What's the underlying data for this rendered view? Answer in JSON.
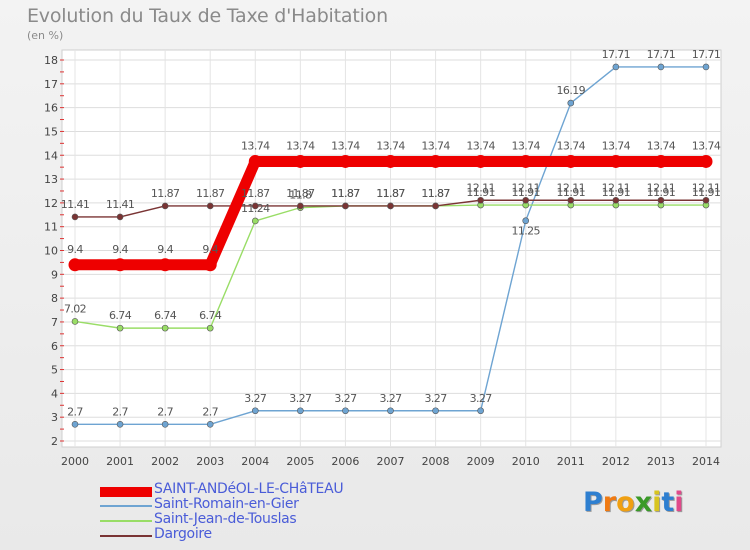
{
  "chart_data": {
    "type": "line",
    "title": "Evolution du Taux de Taxe d'Habitation",
    "subtitle": "(en %)",
    "x": [
      "2000",
      "2001",
      "2002",
      "2003",
      "2004",
      "2005",
      "2006",
      "2007",
      "2008",
      "2009",
      "2010",
      "2011",
      "2012",
      "2013",
      "2014"
    ],
    "ylim": [
      2,
      18
    ],
    "yticks": [
      "2",
      "3",
      "4",
      "5",
      "6",
      "7",
      "8",
      "9",
      "10",
      "11",
      "12",
      "13",
      "14",
      "15",
      "16",
      "17",
      "18"
    ],
    "grid": true,
    "legend_position": "bottom-left",
    "series": [
      {
        "name": "SAINT-ANDéOL-LE-CHâTEAU",
        "color": "#ee0000",
        "values": [
          9.4,
          9.4,
          9.4,
          9.4,
          13.74,
          13.74,
          13.74,
          13.74,
          13.74,
          13.74,
          13.74,
          13.74,
          13.74,
          13.74,
          13.74
        ],
        "labels": [
          "9.4",
          "9.4",
          "9.4",
          "9.4",
          "13.74",
          "13.74",
          "13.74",
          "13.74",
          "13.74",
          "13.74",
          "13.74",
          "13.74",
          "13.74",
          "13.74",
          "13.74"
        ]
      },
      {
        "name": "Saint-Romain-en-Gier",
        "color": "#6ea4d2",
        "values": [
          2.7,
          2.7,
          2.7,
          2.7,
          3.27,
          3.27,
          3.27,
          3.27,
          3.27,
          3.27,
          11.25,
          16.19,
          17.71,
          17.71,
          17.71
        ],
        "labels": [
          "2.7",
          "2.7",
          "2.7",
          "2.7",
          "3.27",
          "3.27",
          "3.27",
          "3.27",
          "3.27",
          "3.27",
          "11.25",
          "16.19",
          "17.71",
          "17.71",
          "17.71"
        ]
      },
      {
        "name": "Saint-Jean-de-Touslas",
        "color": "#99dd66",
        "values": [
          7.02,
          6.74,
          6.74,
          6.74,
          11.24,
          11.8,
          11.87,
          11.87,
          11.87,
          11.91,
          11.91,
          11.91,
          11.91,
          11.91,
          11.91
        ],
        "labels": [
          "7.02",
          "6.74",
          "6.74",
          "6.74",
          "11.24",
          "11.8",
          "11.87",
          "11.87",
          "11.87",
          "11.91",
          "11.91",
          "11.91",
          "11.91",
          "11.91",
          "11.91"
        ]
      },
      {
        "name": "Dargoire",
        "color": "#7a3434",
        "values": [
          11.41,
          11.41,
          11.87,
          11.87,
          11.87,
          11.87,
          11.87,
          11.87,
          11.87,
          12.11,
          12.11,
          12.11,
          12.11,
          12.11,
          12.11
        ],
        "labels": [
          "11.41",
          "11.41",
          "11.87",
          "11.87",
          "11.87",
          "11.87",
          "11.87",
          "11.87",
          "11.87",
          "12.11",
          "12.11",
          "12.11",
          "12.11",
          "12.11",
          "12.11"
        ]
      }
    ]
  },
  "brand": {
    "letters": [
      "P",
      "r",
      "o",
      "x",
      "i",
      "t",
      "i"
    ],
    "colors": [
      "#2e7fd0",
      "#f07a12",
      "#f0a012",
      "#3a9a28",
      "#d8c420",
      "#2e7fd0",
      "#e04a8a"
    ]
  }
}
